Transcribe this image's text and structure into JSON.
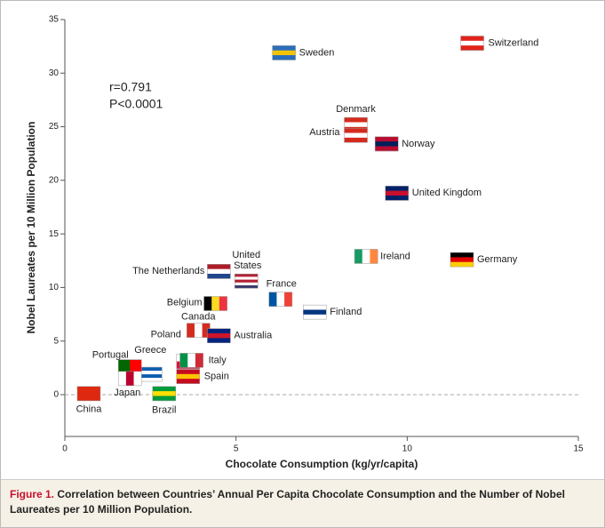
{
  "chart_data": {
    "type": "scatter",
    "x_label": "Chocolate Consumption (kg/yr/capita)",
    "y_label": "Nobel Laureates per 10 Million Population",
    "annotations": [
      "r=0.791",
      "P<0.0001"
    ],
    "caption_label": "Figure 1.",
    "caption": "Correlation between Countries’ Annual Per Capita Chocolate Consumption and the Number of Nobel Laureates per 10 Million Population.",
    "xlim": [
      0,
      15
    ],
    "ylim": [
      -3.9,
      35
    ],
    "xticks": [
      0,
      5,
      10,
      15
    ],
    "yticks": [
      0,
      5,
      10,
      15,
      20,
      25,
      30,
      35
    ],
    "zero_line": true,
    "points": [
      {
        "name": "Switzerland",
        "x": 11.9,
        "y": 32.8,
        "stripes": "h",
        "colors": [
          "#e2231a",
          "#ffffff",
          "#e2231a"
        ]
      },
      {
        "name": "Sweden",
        "x": 6.4,
        "y": 31.9,
        "stripes": "h",
        "colors": [
          "#2a6ebb",
          "#f5c400",
          "#2a6ebb"
        ]
      },
      {
        "name": "Denmark",
        "x": 8.5,
        "y": 25.2,
        "stripes": "h",
        "colors": [
          "#d52b1e",
          "#ffffff",
          "#d52b1e"
        ]
      },
      {
        "name": "Austria",
        "x": 8.5,
        "y": 24.2,
        "stripes": "h",
        "colors": [
          "#d52b1e",
          "#ffffff",
          "#d52b1e"
        ]
      },
      {
        "name": "Norway",
        "x": 9.4,
        "y": 23.4,
        "stripes": "h",
        "colors": [
          "#ba0c2f",
          "#00205b",
          "#ba0c2f"
        ]
      },
      {
        "name": "United Kingdom",
        "x": 9.7,
        "y": 18.8,
        "stripes": "h",
        "colors": [
          "#012169",
          "#c8102e",
          "#012169"
        ]
      },
      {
        "name": "Ireland",
        "x": 8.8,
        "y": 12.9,
        "stripes": "v",
        "colors": [
          "#169b62",
          "#ffffff",
          "#ff883e"
        ]
      },
      {
        "name": "Germany",
        "x": 11.6,
        "y": 12.6,
        "stripes": "h",
        "colors": [
          "#000000",
          "#dd0000",
          "#ffce00"
        ]
      },
      {
        "name": "The Netherlands",
        "x": 4.5,
        "y": 11.5,
        "stripes": "h",
        "colors": [
          "#ae1c28",
          "#ffffff",
          "#21468b"
        ]
      },
      {
        "name": "United States",
        "x": 5.3,
        "y": 10.6,
        "stripes": "h",
        "colors": [
          "#b22234",
          "#ffffff",
          "#b22234",
          "#ffffff",
          "#3c3b6e"
        ]
      },
      {
        "name": "France",
        "x": 6.3,
        "y": 8.9,
        "stripes": "v",
        "colors": [
          "#0055a4",
          "#ffffff",
          "#ef4135"
        ]
      },
      {
        "name": "Finland",
        "x": 7.3,
        "y": 7.7,
        "stripes": "h",
        "colors": [
          "#ffffff",
          "#003580",
          "#ffffff"
        ]
      },
      {
        "name": "Belgium",
        "x": 4.4,
        "y": 8.5,
        "stripes": "v",
        "colors": [
          "#000000",
          "#fdda24",
          "#ef3340"
        ]
      },
      {
        "name": "Canada",
        "x": 3.9,
        "y": 6.0,
        "stripes": "v",
        "colors": [
          "#d52b1e",
          "#ffffff",
          "#d52b1e"
        ]
      },
      {
        "name": "Australia",
        "x": 4.5,
        "y": 5.5,
        "stripes": "h",
        "colors": [
          "#00247d",
          "#cf142b",
          "#00247d"
        ]
      },
      {
        "name": "Poland",
        "x": 3.6,
        "y": 3.1,
        "stripes": "h",
        "colors": [
          "#ffffff",
          "#dc143c"
        ]
      },
      {
        "name": "Italy",
        "x": 3.7,
        "y": 3.2,
        "stripes": "v",
        "colors": [
          "#009246",
          "#ffffff",
          "#ce2b37"
        ]
      },
      {
        "name": "Spain",
        "x": 3.6,
        "y": 1.7,
        "stripes": "h",
        "colors": [
          "#c60b1e",
          "#ffc400",
          "#c60b1e"
        ]
      },
      {
        "name": "Greece",
        "x": 2.5,
        "y": 1.9,
        "stripes": "h",
        "colors": [
          "#0d5eaf",
          "#ffffff",
          "#0d5eaf",
          "#ffffff"
        ]
      },
      {
        "name": "Portugal",
        "x": 1.9,
        "y": 2.6,
        "stripes": "v",
        "colors": [
          "#006600",
          "#ff0000"
        ]
      },
      {
        "name": "Japan",
        "x": 1.9,
        "y": 1.5,
        "stripes": "v",
        "colors": [
          "#ffffff",
          "#bc002d",
          "#ffffff"
        ]
      },
      {
        "name": "Brazil",
        "x": 2.9,
        "y": 0.1,
        "stripes": "h",
        "colors": [
          "#009c3b",
          "#ffdf00",
          "#009c3b"
        ]
      },
      {
        "name": "China",
        "x": 0.7,
        "y": 0.1,
        "stripes": "h",
        "colors": [
          "#de2910",
          "#de2910"
        ]
      }
    ]
  }
}
